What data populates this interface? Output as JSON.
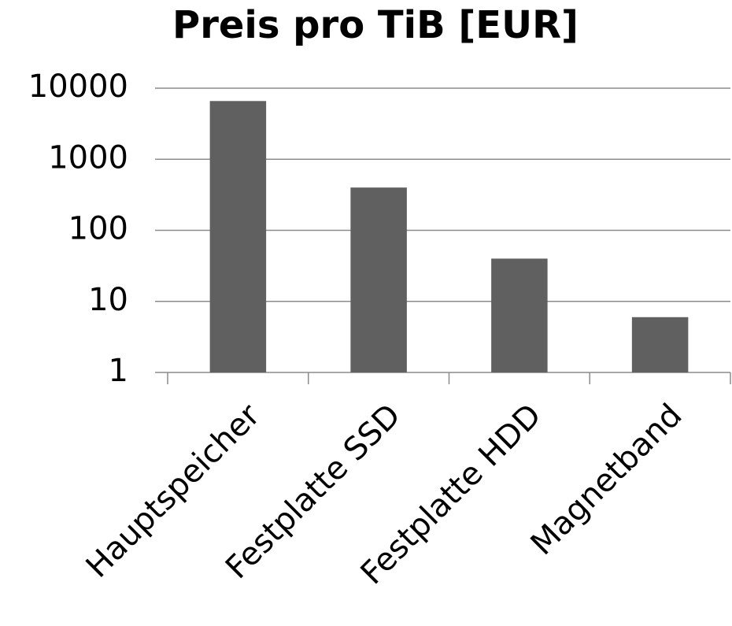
{
  "chart_data": {
    "type": "bar",
    "title": "Preis pro TiB [EUR]",
    "categories": [
      "Hauptspeicher",
      "Festplatte SSD",
      "Festplatte HDD",
      "Magnetband"
    ],
    "values": [
      6600,
      400,
      40,
      6
    ],
    "color": "#606060",
    "log_scale": true,
    "ylim": [
      1,
      10000
    ],
    "yticks": [
      1,
      10,
      100,
      1000,
      10000
    ],
    "grid": true
  }
}
